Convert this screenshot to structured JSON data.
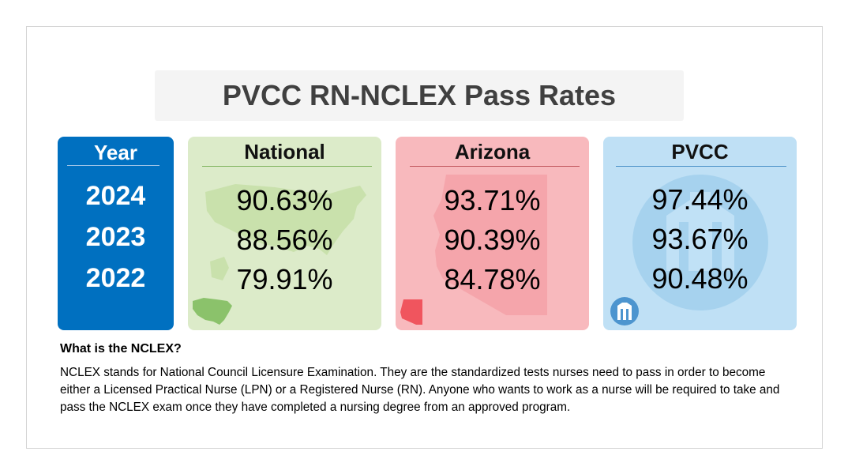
{
  "title": "PVCC RN-NCLEX Pass Rates",
  "year_card": {
    "header": "Year",
    "years": [
      "2024",
      "2023",
      "2022"
    ]
  },
  "national_card": {
    "header": "National",
    "rates": [
      "90.63%",
      "88.56%",
      "79.91%"
    ],
    "icon": "us-map-icon"
  },
  "arizona_card": {
    "header": "Arizona",
    "rates": [
      "93.71%",
      "90.39%",
      "84.78%"
    ],
    "icon": "arizona-map-icon"
  },
  "pvcc_card": {
    "header": "PVCC",
    "rates": [
      "97.44%",
      "93.67%",
      "90.48%"
    ],
    "icon": "pvcc-logo-icon"
  },
  "faq": {
    "question": "What is the NCLEX?",
    "answer": "NCLEX stands for National Council Licensure Examination. They are the standardized tests nurses need to pass in order to become either a Licensed Practical Nurse (LPN) or a Registered Nurse (RN). Anyone who wants to work as a nurse will be required to take and pass the NCLEX exam once they have completed a nursing degree from an approved program."
  },
  "colors": {
    "year_bg": "#0070c0",
    "national_bg": "#dcebc9",
    "arizona_bg": "#f8b9bd",
    "pvcc_bg": "#bfe0f5",
    "title_text": "#404040"
  }
}
